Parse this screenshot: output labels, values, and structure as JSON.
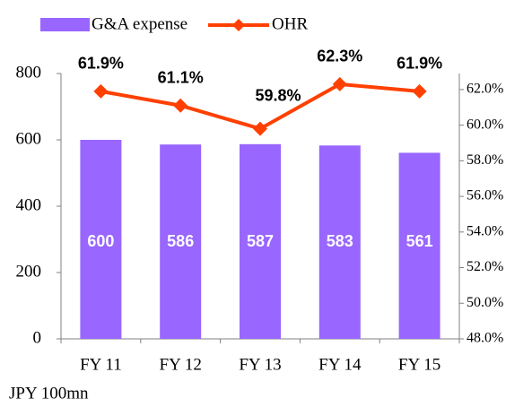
{
  "chart_data": {
    "type": "bar",
    "categories": [
      "FY 11",
      "FY 12",
      "FY 13",
      "FY 14",
      "FY 15"
    ],
    "series": [
      {
        "name": "G&A expense",
        "color": "#9966ff",
        "values": [
          600,
          586,
          587,
          583,
          561
        ]
      },
      {
        "name": "OHR",
        "color": "#ff4000",
        "axis": "y2",
        "values": [
          61.9,
          61.1,
          59.8,
          62.3,
          61.9
        ],
        "value_labels": [
          "61.9%",
          "61.1%",
          "59.8%",
          "62.3%",
          "61.9%"
        ]
      }
    ],
    "ylim": [
      0,
      800
    ],
    "yticks": [
      0,
      200,
      400,
      600,
      800
    ],
    "y2lim": [
      48,
      62.9
    ],
    "y2ticks": [
      {
        "value": 48,
        "label": "48.0%"
      },
      {
        "value": 50,
        "label": "50.0%"
      },
      {
        "value": 52,
        "label": "52.0%"
      },
      {
        "value": 54,
        "label": "54.0%"
      },
      {
        "value": 56,
        "label": "56.0%"
      },
      {
        "value": 58,
        "label": "58.0%"
      },
      {
        "value": 60,
        "label": "60.0%"
      },
      {
        "value": 62,
        "label": "62.0%"
      }
    ],
    "unit_note": "JPY 100mn",
    "legend": "top"
  }
}
